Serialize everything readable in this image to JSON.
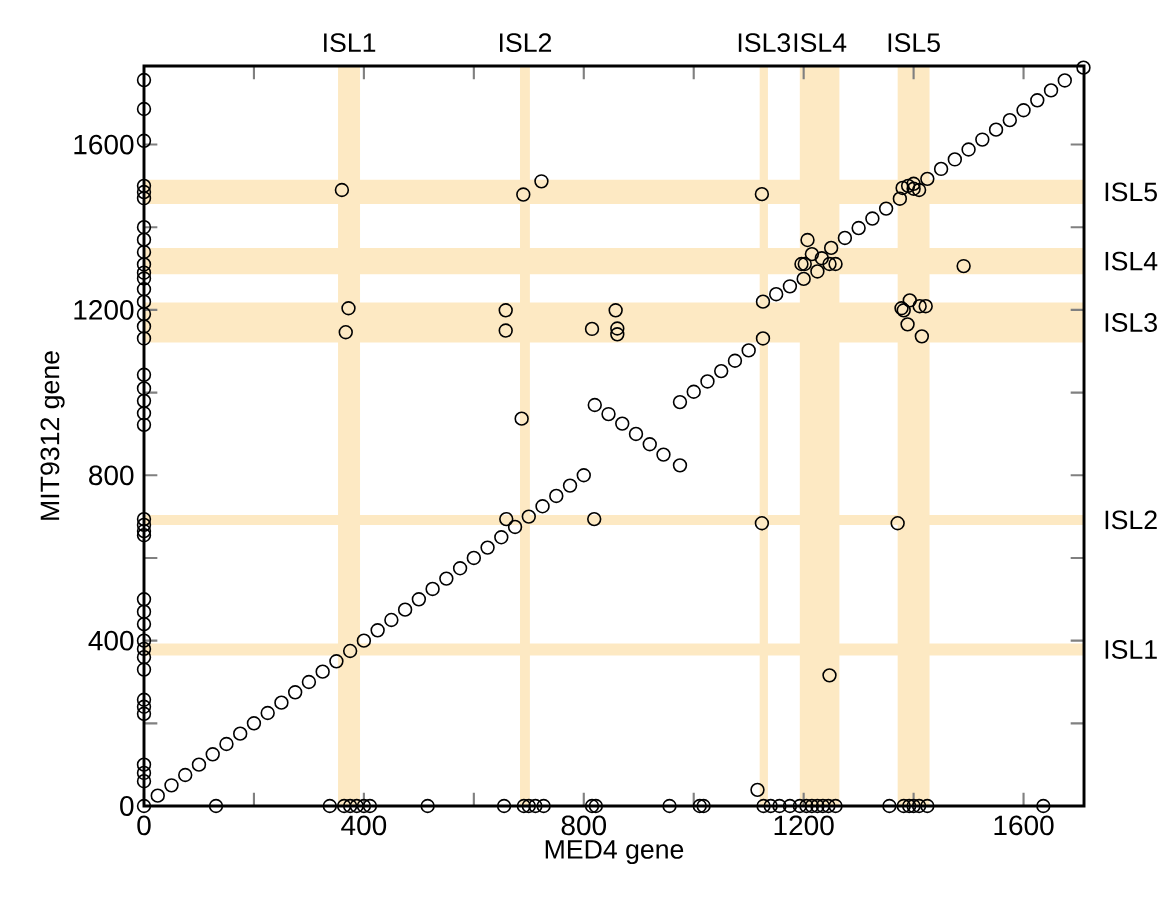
{
  "chart_data": {
    "type": "scatter",
    "xlabel": "MED4 gene",
    "ylabel": "MIT9312 gene",
    "marker": "circle",
    "xlim": [
      0,
      1710
    ],
    "ylim": [
      0,
      1790
    ],
    "xticks": [
      0,
      {
        "value": 200,
        "label": null
      },
      400,
      {
        "value": 600,
        "label": null
      },
      800,
      {
        "value": 1000,
        "label": null
      },
      1200,
      {
        "value": 1400,
        "label": null
      },
      1600
    ],
    "yticks": [
      0,
      {
        "value": 200,
        "label": null
      },
      400,
      {
        "value": 600,
        "label": null
      },
      800,
      {
        "value": 1000,
        "label": null
      },
      1200,
      {
        "value": 1400,
        "label": null
      },
      1600
    ],
    "bands": [
      {
        "axis": "x",
        "from": 353,
        "to": 393,
        "label": "ISL1",
        "color": "#fde9c3"
      },
      {
        "axis": "x",
        "from": 684,
        "to": 702,
        "label": "ISL2",
        "color": "#fde9c3"
      },
      {
        "axis": "x",
        "from": 1120,
        "to": 1135,
        "label": "ISL3",
        "color": "#fde9c3"
      },
      {
        "axis": "x",
        "from": 1193,
        "to": 1265,
        "label": "ISL4",
        "color": "#fde9c3"
      },
      {
        "axis": "x",
        "from": 1371,
        "to": 1429,
        "label": "ISL5",
        "color": "#fde9c3"
      },
      {
        "axis": "y",
        "from": 1456,
        "to": 1515,
        "label": "ISL5",
        "color": "#fde9c3"
      },
      {
        "axis": "y",
        "from": 1286,
        "to": 1350,
        "label": "ISL4",
        "color": "#fde9c3"
      },
      {
        "axis": "y",
        "from": 1121,
        "to": 1218,
        "label": "ISL3",
        "color": "#fde9c3"
      },
      {
        "axis": "y",
        "from": 680,
        "to": 704,
        "label": "ISL2",
        "color": "#fde9c3"
      },
      {
        "axis": "y",
        "from": 364,
        "to": 393,
        "label": "ISL1",
        "color": "#fde9c3"
      }
    ],
    "series": [
      {
        "color": "#000000",
        "x": [
          0,
          25,
          50,
          75,
          100,
          125,
          150,
          175,
          200,
          225,
          250,
          275,
          300,
          325,
          350,
          375,
          400,
          425,
          450,
          475,
          500,
          525,
          550,
          575,
          600,
          625,
          650,
          675,
          700,
          725,
          750,
          775,
          800,
          820,
          845,
          870,
          895,
          920,
          945,
          975,
          975,
          1000,
          1025,
          1050,
          1075,
          1100,
          1126,
          1126,
          1150,
          1175,
          1200,
          1225,
          1247,
          1250,
          1275,
          1300,
          1325,
          1350,
          1375,
          1400,
          1425,
          1450,
          1475,
          1500,
          1525,
          1550,
          1575,
          1600,
          1625,
          1650,
          1675,
          1709,
          360,
          372,
          367,
          690,
          723,
          658,
          658,
          815,
          858,
          861,
          861,
          687,
          659,
          819,
          1124,
          1124,
          1371,
          1247,
          1116,
          1207,
          1202,
          1215,
          1233,
          1258,
          1196,
          1380,
          1390,
          1400,
          1410,
          1491,
          1378,
          1393,
          1411,
          1422,
          1389,
          1415,
          1382,
          0,
          0,
          0,
          0,
          0,
          0,
          0,
          0,
          0,
          0,
          0,
          0,
          0,
          0,
          0,
          0,
          0,
          0,
          0,
          0,
          0,
          0,
          0,
          0,
          0,
          0,
          0,
          0,
          0,
          0,
          0,
          0,
          0,
          0,
          0,
          0,
          0,
          0,
          0,
          131,
          338,
          364,
          375,
          387,
          400,
          411,
          516,
          655,
          691,
          700,
          712,
          727,
          815,
          822,
          956,
          1011,
          1018,
          1127,
          1140,
          1156,
          1175,
          1193,
          1205,
          1215,
          1225,
          1235,
          1245,
          1258,
          1356,
          1382,
          1392,
          1400,
          1410,
          1425,
          1636
        ],
        "values": [
          0,
          25,
          50,
          75,
          100,
          125,
          150,
          175,
          200,
          225,
          250,
          275,
          300,
          325,
          350,
          375,
          400,
          425,
          450,
          475,
          500,
          525,
          550,
          575,
          600,
          625,
          650,
          675,
          700,
          725,
          750,
          775,
          800,
          970,
          948,
          925,
          900,
          875,
          850,
          824,
          977,
          1002,
          1027,
          1052,
          1077,
          1102,
          1131,
          1220,
          1238,
          1257,
          1275,
          1293,
          1311,
          1350,
          1374,
          1398,
          1421,
          1445,
          1469,
          1493,
          1517,
          1541,
          1564,
          1588,
          1612,
          1636,
          1659,
          1683,
          1707,
          1731,
          1755,
          1786,
          1490,
          1204,
          1146,
          1479,
          1511,
          1199,
          1150,
          1154,
          1199,
          1155,
          1141,
          937,
          694,
          694,
          1480,
          684,
          684,
          316,
          39,
          1369,
          1311,
          1335,
          1325,
          1311,
          1311,
          1495,
          1500,
          1505,
          1490,
          1306,
          1204,
          1223,
          1209,
          1209,
          1165,
          1136,
          1199,
          1756,
          1686,
          1609,
          1500,
          1485,
          1470,
          1400,
          1370,
          1340,
          1310,
          1290,
          1276,
          1250,
          1220,
          1190,
          1160,
          1131,
          1043,
          1010,
          980,
          950,
          922,
          694,
          680,
          665,
          655,
          500,
          470,
          440,
          400,
          380,
          360,
          330,
          257,
          240,
          223,
          100,
          80,
          60,
          0,
          0,
          0,
          0,
          0,
          0,
          0,
          0,
          0,
          0,
          0,
          0,
          0,
          0,
          0,
          0,
          0,
          0,
          0,
          0,
          0,
          0,
          0,
          0,
          0,
          0,
          0,
          0,
          0,
          0,
          0,
          0,
          0,
          0,
          0,
          0
        ]
      }
    ]
  }
}
